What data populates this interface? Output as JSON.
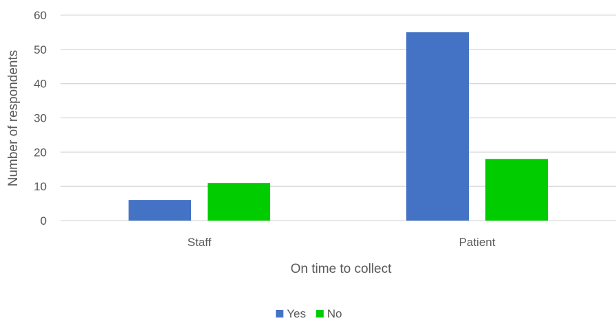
{
  "chart_data": {
    "type": "bar",
    "categories": [
      "Staff",
      "Patient"
    ],
    "series": [
      {
        "name": "Yes",
        "values": [
          6,
          55
        ],
        "color": "#4472C4"
      },
      {
        "name": "No",
        "values": [
          11,
          18
        ],
        "color": "#00CC00"
      }
    ],
    "xlabel": "On time to collect",
    "ylabel": "Number of respondents",
    "ylim": [
      0,
      60
    ],
    "yticks": [
      0,
      10,
      20,
      30,
      40,
      50,
      60
    ],
    "grid": true,
    "legend_position": "bottom"
  }
}
